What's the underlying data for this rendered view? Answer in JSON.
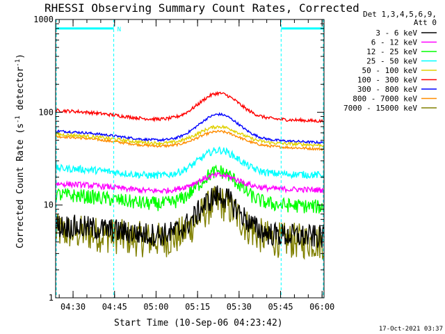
{
  "chart_data": {
    "type": "line",
    "title": "RHESSI Observing Summary Count Rates, Corrected",
    "xlabel": "Start Time (10-Sep-06 04:23:42)",
    "ylabel_main": "Corrected Count Rate (s",
    "ylabel_sup1": "-1",
    "ylabel_mid": " detector",
    "ylabel_sup2": "-1",
    "ylabel_end": ")",
    "y_scale": "log",
    "ylim": [
      1,
      1000
    ],
    "xlim_minutes": [
      0,
      97
    ],
    "x_ticks": [
      {
        "label": "04:30",
        "min": 6.3
      },
      {
        "label": "04:45",
        "min": 21.3
      },
      {
        "label": "05:00",
        "min": 36.3
      },
      {
        "label": "05:15",
        "min": 51.3
      },
      {
        "label": "05:30",
        "min": 66.3
      },
      {
        "label": "05:45",
        "min": 81.3
      },
      {
        "label": "06:00",
        "min": 96.3
      }
    ],
    "y_ticks": [
      {
        "label": "1",
        "value": 1
      },
      {
        "label": "10",
        "value": 10
      },
      {
        "label": "100",
        "value": 100
      },
      {
        "label": "1000",
        "value": 1000
      }
    ],
    "legend_header": [
      "Det 1,3,4,5,6,9,",
      "Att 0"
    ],
    "legend_position": "right",
    "series": [
      {
        "name": "3 - 6 keV",
        "color": "#000000",
        "base": 6.0,
        "peak": 12.5,
        "end": 4.5,
        "noise": 0.3
      },
      {
        "name": "6 - 12 keV",
        "color": "#ff00ff",
        "base": 17.0,
        "peak": 21.0,
        "end": 14.5,
        "noise": 0.07
      },
      {
        "name": "12 - 25 keV",
        "color": "#00ff00",
        "base": 13.0,
        "peak": 23.0,
        "end": 9.5,
        "noise": 0.18
      },
      {
        "name": "25 - 50 keV",
        "color": "#00ffff",
        "base": 25.0,
        "peak": 39.0,
        "end": 21.0,
        "noise": 0.09
      },
      {
        "name": "50 - 100 keV",
        "color": "#e0d000",
        "base": 58.0,
        "peak": 70.0,
        "end": 44.0,
        "noise": 0.04
      },
      {
        "name": "100 - 300 keV",
        "color": "#ff0000",
        "base": 105.0,
        "peak": 160.0,
        "end": 80.0,
        "noise": 0.04
      },
      {
        "name": "300 - 800 keV",
        "color": "#0000ff",
        "base": 63.0,
        "peak": 95.0,
        "end": 47.0,
        "noise": 0.03
      },
      {
        "name": "800 - 7000 keV",
        "color": "#ff8c00",
        "base": 55.0,
        "peak": 62.0,
        "end": 40.0,
        "noise": 0.03
      },
      {
        "name": "7000 - 15000 keV",
        "color": "#808000",
        "base": 5.2,
        "peak": 10.5,
        "end": 4.0,
        "noise": 0.45
      }
    ],
    "markers": [
      {
        "type": "night",
        "from_min": 0,
        "to_min": 21.0,
        "level": 800,
        "label": "N"
      },
      {
        "type": "night",
        "from_min": 81.5,
        "to_min": 97,
        "level": 800,
        "label": ""
      }
    ],
    "dashed_vlines_min": [
      0,
      21.0,
      81.5,
      97
    ]
  },
  "timestamp": "17-Oct-2021 03:37"
}
